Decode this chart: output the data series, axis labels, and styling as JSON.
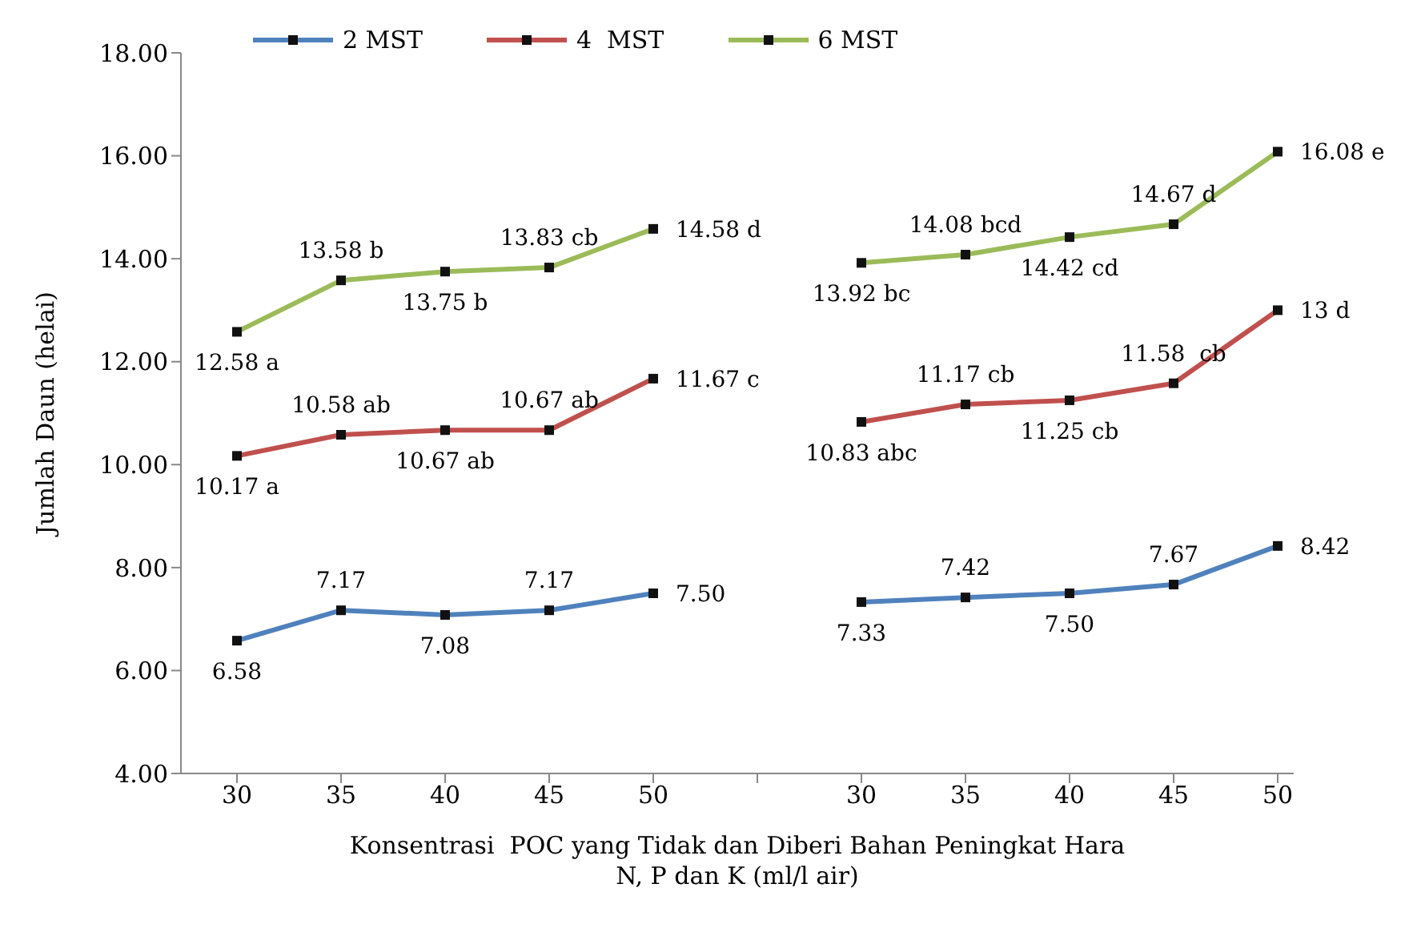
{
  "chart_data": {
    "type": "line",
    "xlabel": "Konsentrasi  POC yang Tidak dan Diberi Bahan Peningkat Hara\nN, P dan K (ml/l air)",
    "ylabel": "Jumlah Daun (helai)",
    "categories": [
      "30",
      "35",
      "40",
      "45",
      "50",
      null,
      "30",
      "35",
      "40",
      "45",
      "50"
    ],
    "series": [
      {
        "name": "2 MST",
        "color": "#4f81bd",
        "values": [
          6.58,
          7.17,
          7.08,
          7.17,
          7.5,
          null,
          7.33,
          7.42,
          7.5,
          7.67,
          8.42
        ],
        "value_labels": [
          "6.58",
          "7.17",
          "7.08",
          "7.17",
          "7.50",
          null,
          "7.33",
          "7.42",
          "7.50",
          "7.67",
          "8.42"
        ]
      },
      {
        "name": "4  MST",
        "color": "#c0504d",
        "values": [
          10.17,
          10.58,
          10.67,
          10.67,
          11.67,
          null,
          10.83,
          11.17,
          11.25,
          11.58,
          13
        ],
        "value_labels": [
          "10.17 a",
          "10.58 ab",
          "10.67 ab",
          "10.67 ab",
          "11.67 c",
          null,
          "10.83 abc",
          "11.17 cb",
          "11.25 cb",
          "11.58  cb",
          "13 d"
        ]
      },
      {
        "name": "6 MST",
        "color": "#9bbb59",
        "values": [
          12.58,
          13.58,
          13.75,
          13.83,
          14.58,
          null,
          13.92,
          14.08,
          14.42,
          14.67,
          16.08
        ],
        "value_labels": [
          "12.58 a",
          "13.58 b",
          "13.75 b",
          "13.83 cb",
          "14.58 d",
          null,
          "13.92 bc",
          "14.08 bcd",
          "14.42 cd",
          "14.67 d",
          "16.08 e"
        ]
      }
    ],
    "ylim": [
      4,
      18
    ],
    "yticks": [
      {
        "value": 4,
        "label": "4.00"
      },
      {
        "value": 6,
        "label": "6.00"
      },
      {
        "value": 8,
        "label": "8.00"
      },
      {
        "value": 10,
        "label": "10.00"
      },
      {
        "value": 12,
        "label": "12.00"
      },
      {
        "value": 14,
        "label": "14.00"
      },
      {
        "value": 16,
        "label": "16.00"
      },
      {
        "value": 18,
        "label": "18.00"
      }
    ],
    "grid": false,
    "legend": "top",
    "marker": "square",
    "line_style": "solid"
  }
}
